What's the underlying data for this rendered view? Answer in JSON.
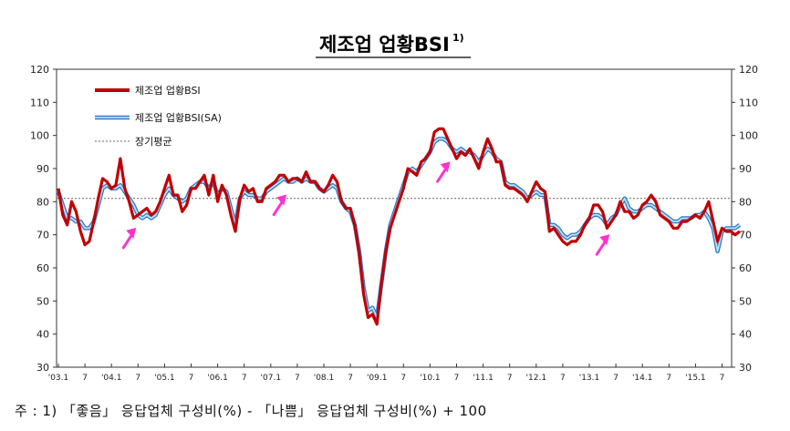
{
  "title": "제조업 업황BSI",
  "title_sup": "1)",
  "footnote": "주 : 1) 「좋음」 응답업체 구성비(%) - 「나쁨」 응답업체 구성비(%) + 100",
  "colors": {
    "bsi": "#c00000",
    "sa_outer": "#2f78c8",
    "sa_inner": "#bde0f6",
    "avg": "#666666",
    "arrow": "#ff33cc"
  },
  "chart_data": {
    "type": "line",
    "ylim": [
      30,
      120
    ],
    "yticks": [
      "30",
      "40",
      "50",
      "60",
      "70",
      "80",
      "90",
      "100",
      "110",
      "120"
    ],
    "xticks": [
      {
        "label": "'03.1",
        "t": 0
      },
      {
        "label": "7",
        "t": 6
      },
      {
        "label": "'04.1",
        "t": 12
      },
      {
        "label": "7",
        "t": 18
      },
      {
        "label": "'05.1",
        "t": 24
      },
      {
        "label": "7",
        "t": 30
      },
      {
        "label": "'06.1",
        "t": 36
      },
      {
        "label": "7",
        "t": 42
      },
      {
        "label": "'07.1",
        "t": 48
      },
      {
        "label": "7",
        "t": 54
      },
      {
        "label": "'08.1",
        "t": 60
      },
      {
        "label": "7",
        "t": 66
      },
      {
        "label": "'09.1",
        "t": 72
      },
      {
        "label": "7",
        "t": 78
      },
      {
        "label": "'10.1",
        "t": 84
      },
      {
        "label": "7",
        "t": 90
      },
      {
        "label": "'11.1",
        "t": 96
      },
      {
        "label": "7",
        "t": 102
      },
      {
        "label": "'12.1",
        "t": 108
      },
      {
        "label": "7",
        "t": 114
      },
      {
        "label": "'13.1",
        "t": 120
      },
      {
        "label": "7",
        "t": 126
      },
      {
        "label": "'14.1",
        "t": 132
      },
      {
        "label": "7",
        "t": 138
      },
      {
        "label": "'15.1",
        "t": 144
      },
      {
        "label": "7",
        "t": 150
      }
    ],
    "long_term_average": 81,
    "series": [
      {
        "name": "제조업 업황BSI",
        "values": [
          84,
          76,
          73,
          80,
          77,
          71,
          67,
          68,
          74,
          81,
          87,
          86,
          84,
          85,
          93,
          84,
          80,
          75,
          76,
          77,
          78,
          76,
          77,
          80,
          84,
          88,
          82,
          82,
          77,
          79,
          84,
          84,
          86,
          88,
          82,
          88,
          80,
          85,
          82,
          76,
          71,
          81,
          85,
          83,
          84,
          80,
          80,
          84,
          85,
          86,
          88,
          88,
          86,
          87,
          87,
          86,
          89,
          86,
          86,
          84,
          83,
          85,
          88,
          86,
          80,
          78,
          78,
          73,
          64,
          52,
          45,
          46,
          43,
          55,
          65,
          72,
          76,
          80,
          84,
          90,
          89,
          88,
          92,
          93,
          95,
          101,
          102,
          102,
          99,
          96,
          93,
          95,
          94,
          96,
          93,
          90,
          95,
          99,
          96,
          92,
          92,
          85,
          84,
          84,
          83,
          82,
          80,
          83,
          86,
          84,
          83,
          71,
          72,
          70,
          68,
          67,
          68,
          68,
          70,
          73,
          75,
          79,
          79,
          77,
          72,
          74,
          76,
          80,
          77,
          77,
          75,
          76,
          79,
          80,
          82,
          80,
          76,
          75,
          74,
          72,
          72,
          74,
          74,
          75,
          76,
          75,
          77,
          80,
          74,
          68,
          72,
          71,
          71,
          70,
          71
        ],
        "color": "#c00000"
      },
      {
        "name": "제조업 업황BSI(SA)",
        "values": [
          83,
          79,
          75,
          75,
          74,
          74,
          72,
          72,
          74,
          79,
          84,
          85,
          84,
          84,
          85,
          83,
          81,
          79,
          76,
          75,
          76,
          75,
          76,
          79,
          82,
          84,
          82,
          81,
          80,
          81,
          84,
          85,
          86,
          86,
          84,
          86,
          82,
          84,
          83,
          78,
          73,
          81,
          83,
          82,
          82,
          81,
          81,
          83,
          84,
          85,
          86,
          87,
          86,
          86,
          87,
          86,
          87,
          86,
          86,
          84,
          83,
          84,
          85,
          84,
          80,
          78,
          77,
          73,
          65,
          54,
          47,
          48,
          45,
          55,
          65,
          73,
          77,
          81,
          85,
          89,
          90,
          89,
          91,
          93,
          95,
          98,
          99,
          99,
          98,
          96,
          95,
          96,
          95,
          95,
          94,
          92,
          94,
          96,
          95,
          93,
          92,
          86,
          85,
          85,
          84,
          83,
          81,
          82,
          83,
          82,
          82,
          73,
          73,
          72,
          70,
          69,
          70,
          70,
          71,
          73,
          75,
          76,
          76,
          75,
          73,
          75,
          76,
          79,
          81,
          78,
          77,
          77,
          78,
          79,
          79,
          78,
          77,
          76,
          75,
          74,
          74,
          75,
          75,
          75,
          76,
          76,
          77,
          75,
          72,
          65,
          71,
          72,
          72,
          72,
          73
        ],
        "color": "#2f78c8"
      },
      {
        "name": "장기평균",
        "values": [],
        "color": "#666666"
      }
    ],
    "arrows_at": [
      18,
      52,
      89,
      125,
      175
    ]
  }
}
